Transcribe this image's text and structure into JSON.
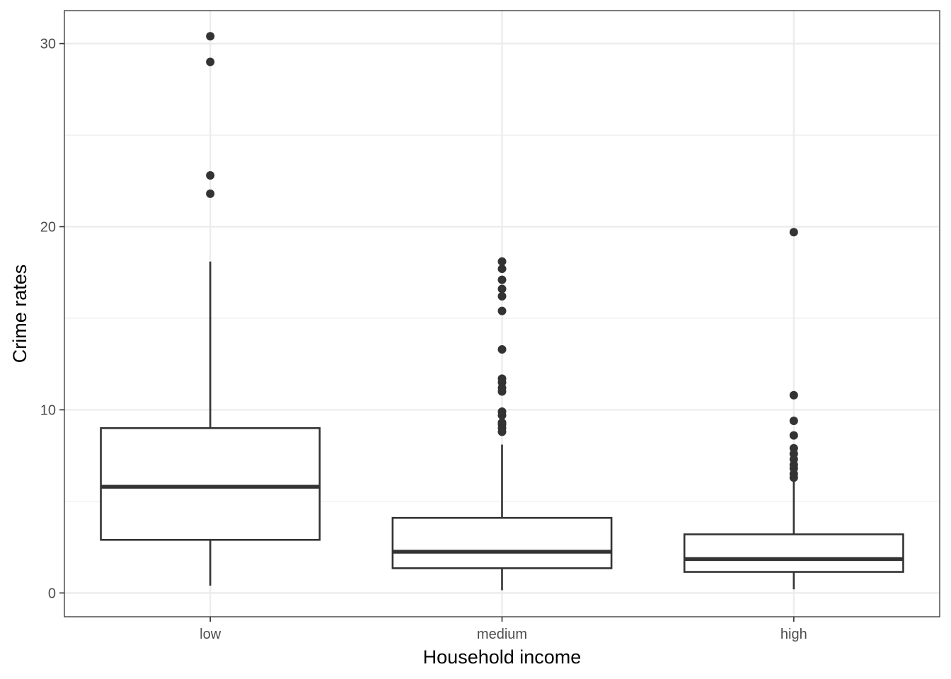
{
  "chart_data": {
    "type": "boxplot",
    "title": "",
    "xlabel": "Household income",
    "ylabel": "Crime rates",
    "ylim": [
      -1.3,
      31.8
    ],
    "yticks": [
      0,
      10,
      20,
      30
    ],
    "ytick_labels": [
      "0",
      "10",
      "20",
      "30"
    ],
    "grid": true,
    "categories": [
      "low",
      "medium",
      "high"
    ],
    "boxes": [
      {
        "category": "low",
        "whisker_low": 0.4,
        "q1": 2.9,
        "median": 5.8,
        "q3": 9.0,
        "whisker_high": 18.1,
        "outliers": [
          21.8,
          22.8,
          29.0,
          30.4
        ]
      },
      {
        "category": "medium",
        "whisker_low": 0.15,
        "q1": 1.35,
        "median": 2.25,
        "q3": 4.1,
        "whisker_high": 8.1,
        "outliers": [
          8.8,
          9.0,
          9.2,
          9.3,
          9.7,
          9.9,
          11.0,
          11.2,
          11.5,
          11.7,
          13.3,
          15.4,
          16.2,
          16.6,
          17.1,
          17.7,
          18.1
        ]
      },
      {
        "category": "high",
        "whisker_low": 0.2,
        "q1": 1.15,
        "median": 1.85,
        "q3": 3.2,
        "whisker_high": 6.2,
        "outliers": [
          6.3,
          6.5,
          6.8,
          7.0,
          7.3,
          7.6,
          7.9,
          8.6,
          9.4,
          10.8,
          19.7
        ]
      }
    ],
    "colors": {
      "box": "#333333",
      "grid": "#ebebeb",
      "panel_border": "#333333",
      "fill": "#ffffff"
    }
  }
}
